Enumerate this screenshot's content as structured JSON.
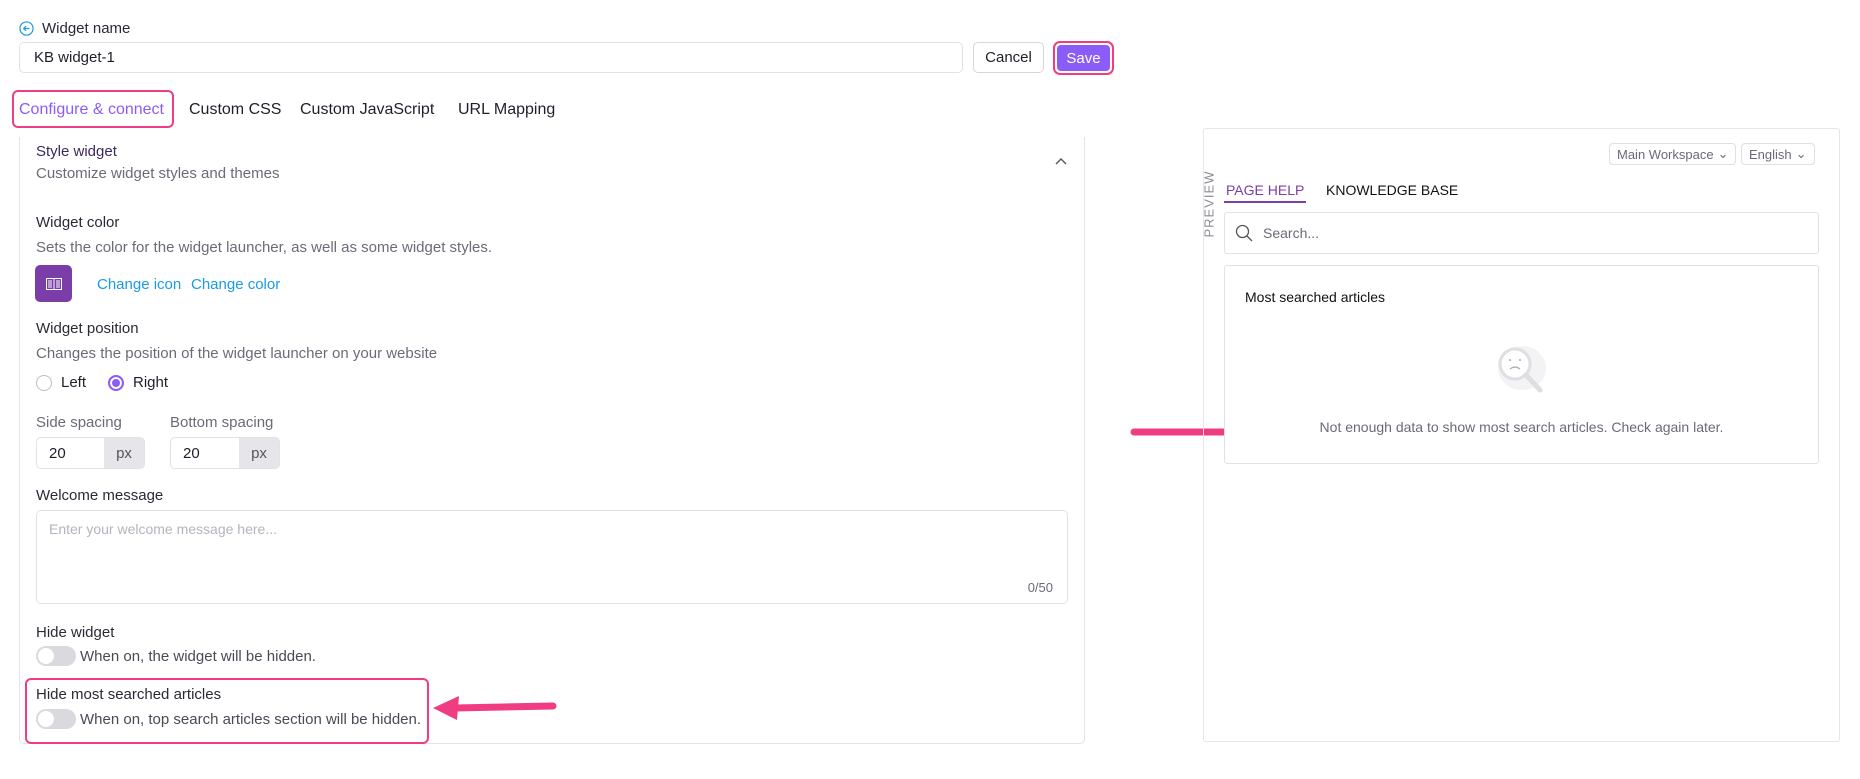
{
  "header": {
    "label": "Widget name",
    "name_value": "KB widget-1",
    "cancel": "Cancel",
    "save": "Save"
  },
  "tabs": [
    {
      "label": "Configure & connect",
      "active": true
    },
    {
      "label": "Custom CSS"
    },
    {
      "label": "Custom JavaScript"
    },
    {
      "label": "URL Mapping"
    }
  ],
  "style": {
    "title": "Style widget",
    "subtitle": "Customize widget styles and themes",
    "color_title": "Widget color",
    "color_desc": "Sets the color for the widget launcher, as well as some widget styles.",
    "widget_color": "#7b3ea8",
    "change_icon": "Change icon",
    "change_color": "Change color",
    "position_title": "Widget position",
    "position_desc": "Changes the position of the widget launcher on your website",
    "left": "Left",
    "right": "Right",
    "position_selected": "Right",
    "side_label": "Side spacing",
    "side_value": "20",
    "bottom_label": "Bottom spacing",
    "bottom_value": "20",
    "unit": "px",
    "welcome_label": "Welcome message",
    "welcome_placeholder": "Enter your welcome message here...",
    "counter": "0/50",
    "hide_widget": "Hide widget",
    "hide_widget_desc": "When on, the widget will be hidden.",
    "hide_widget_on": false,
    "hide_articles": "Hide most searched articles",
    "hide_articles_desc": "When on, top search articles section will be hidden.",
    "hide_articles_on": false
  },
  "preview": {
    "label": "PREVIEW",
    "workspace": "Main Workspace",
    "language": "English",
    "tabs": [
      {
        "label": "PAGE HELP",
        "active": true
      },
      {
        "label": "KNOWLEDGE BASE"
      }
    ],
    "search_placeholder": "Search...",
    "card_title": "Most searched articles",
    "empty_text": "Not enough data to show most search articles. Check again later."
  },
  "colors": {
    "accent": "#8b5cf6",
    "annotation": "#f03c83",
    "link": "#1a9be6"
  }
}
